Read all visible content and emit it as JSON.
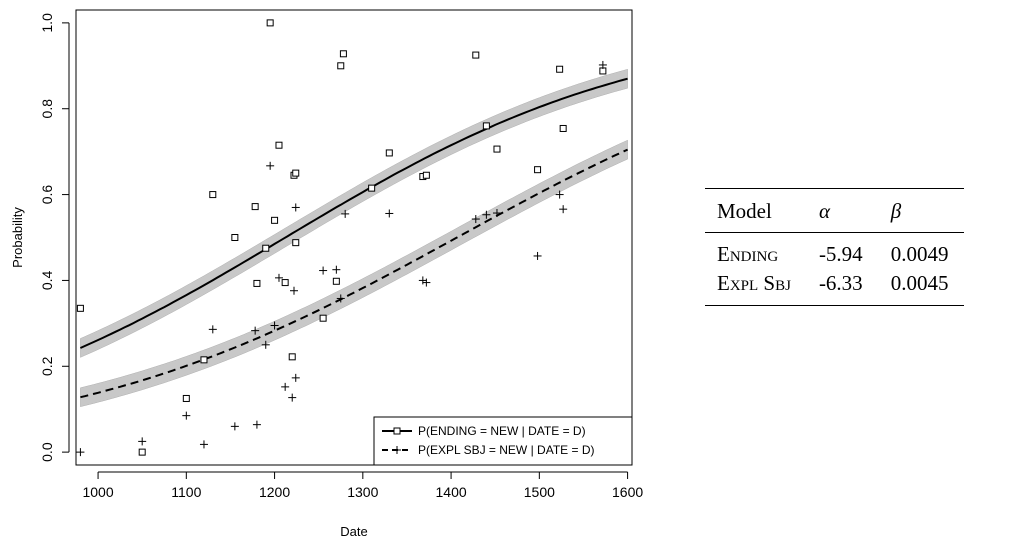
{
  "chart_data": {
    "type": "scatter",
    "xlabel": "Date",
    "ylabel": "Probability",
    "xlim": [
      975,
      1605
    ],
    "ylim": [
      -0.03,
      1.03
    ],
    "xticks": [
      "1000",
      "1100",
      "1200",
      "1300",
      "1400",
      "1500",
      "1600"
    ],
    "yticks": [
      "0.0",
      "0.2",
      "0.4",
      "0.6",
      "0.8",
      "1.0"
    ],
    "legend_position": "bottom-right",
    "series": [
      {
        "name": "P(ENDING = NEW | DATE = D)",
        "marker": "square",
        "line": "solid",
        "alpha": -5.94,
        "beta": 0.0049,
        "points": [
          [
            980,
            0.335
          ],
          [
            1050,
            0.0
          ],
          [
            1100,
            0.125
          ],
          [
            1120,
            0.215
          ],
          [
            1130,
            0.6
          ],
          [
            1155,
            0.5
          ],
          [
            1178,
            0.572
          ],
          [
            1180,
            0.393
          ],
          [
            1190,
            0.475
          ],
          [
            1195,
            1.0
          ],
          [
            1200,
            0.54
          ],
          [
            1205,
            0.715
          ],
          [
            1212,
            0.395
          ],
          [
            1220,
            0.222
          ],
          [
            1222,
            0.645
          ],
          [
            1224,
            0.65
          ],
          [
            1224,
            0.488
          ],
          [
            1255,
            0.312
          ],
          [
            1270,
            0.398
          ],
          [
            1275,
            0.9
          ],
          [
            1278,
            0.928
          ],
          [
            1310,
            0.615
          ],
          [
            1330,
            0.697
          ],
          [
            1368,
            0.642
          ],
          [
            1372,
            0.645
          ],
          [
            1428,
            0.925
          ],
          [
            1440,
            0.76
          ],
          [
            1452,
            0.706
          ],
          [
            1498,
            0.658
          ],
          [
            1523,
            0.892
          ],
          [
            1527,
            0.754
          ],
          [
            1572,
            0.888
          ]
        ]
      },
      {
        "name": "P(EXPL SBJ = NEW | DATE = D)",
        "marker": "plus",
        "line": "dashed",
        "alpha": -6.33,
        "beta": 0.0045,
        "points": [
          [
            980,
            0.0
          ],
          [
            1050,
            0.025
          ],
          [
            1100,
            0.085
          ],
          [
            1120,
            0.018
          ],
          [
            1130,
            0.286
          ],
          [
            1155,
            0.06
          ],
          [
            1178,
            0.283
          ],
          [
            1180,
            0.064
          ],
          [
            1190,
            0.25
          ],
          [
            1195,
            0.667
          ],
          [
            1200,
            0.295
          ],
          [
            1205,
            0.406
          ],
          [
            1212,
            0.152
          ],
          [
            1220,
            0.127
          ],
          [
            1222,
            0.376
          ],
          [
            1224,
            0.57
          ],
          [
            1224,
            0.173
          ],
          [
            1255,
            0.423
          ],
          [
            1270,
            0.425
          ],
          [
            1275,
            0.358
          ],
          [
            1280,
            0.555
          ],
          [
            1330,
            0.556
          ],
          [
            1368,
            0.4
          ],
          [
            1372,
            0.395
          ],
          [
            1428,
            0.543
          ],
          [
            1440,
            0.553
          ],
          [
            1452,
            0.557
          ],
          [
            1498,
            0.457
          ],
          [
            1523,
            0.6
          ],
          [
            1527,
            0.566
          ],
          [
            1572,
            0.902
          ]
        ]
      }
    ]
  },
  "table": {
    "header": [
      "Model",
      "α",
      "β"
    ],
    "rows": [
      [
        "Ending",
        "-5.94",
        "0.0049"
      ],
      [
        "Expl Sbj",
        "-6.33",
        "0.0045"
      ]
    ]
  }
}
